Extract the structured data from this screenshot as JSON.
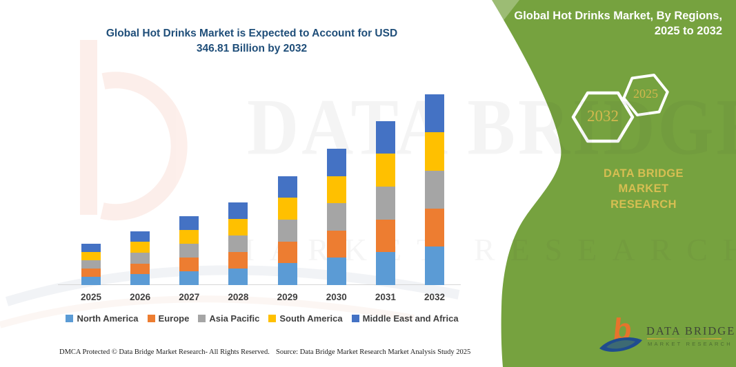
{
  "title": {
    "line1": "Global Hot Drinks Market is Expected to Account for USD",
    "line2": "346.81 Billion by 2032"
  },
  "panel": {
    "header_line1": "Global Hot Drinks Market, By Regions,",
    "header_line2": "2025 to 2032",
    "hexagon_large_label": "2032",
    "hexagon_small_label": "2025",
    "brand_line1": "DATA BRIDGE MARKET",
    "brand_line2": "RESEARCH",
    "background_color": "#76A23F",
    "gold_color": "#D6BE52"
  },
  "watermark": {
    "text_top": "DATA BRIDGE",
    "text_bottom": "MARKET RESEARCH"
  },
  "logo": {
    "name": "DATA BRIDGE",
    "subtitle": "MARKET RESEARCH",
    "b_glyph": "b"
  },
  "footer": {
    "left": "DMCA Protected © Data Bridge Market Research-  All Rights Reserved.",
    "right": "Source: Data Bridge Market Research  Market Analysis Study 2025"
  },
  "chart_data": {
    "type": "bar",
    "subtype": "stacked-column",
    "title": "Global Hot Drinks Market is Expected to Account for USD 346.81 Billion by 2032",
    "unit": "USD Billion",
    "categories": [
      "2025",
      "2026",
      "2027",
      "2028",
      "2029",
      "2030",
      "2031",
      "2032"
    ],
    "series": [
      {
        "name": "North America",
        "color": "#5B9BD5",
        "values": [
          14.9,
          19.6,
          25.1,
          29.9,
          39.6,
          49.4,
          59.6,
          69.36
        ]
      },
      {
        "name": "Europe",
        "color": "#ED7D31",
        "values": [
          14.9,
          19.6,
          25.1,
          29.9,
          39.6,
          49.4,
          59.6,
          69.36
        ]
      },
      {
        "name": "Asia Pacific",
        "color": "#A5A5A5",
        "values": [
          14.9,
          19.6,
          25.1,
          29.9,
          39.6,
          49.4,
          59.6,
          69.36
        ]
      },
      {
        "name": "South America",
        "color": "#FFC000",
        "values": [
          14.9,
          19.6,
          25.1,
          29.9,
          39.6,
          49.4,
          59.6,
          69.36
        ]
      },
      {
        "name": "Middle East and Africa",
        "color": "#4472C4",
        "values": [
          14.9,
          19.6,
          25.1,
          29.9,
          39.6,
          49.4,
          59.6,
          69.36
        ]
      }
    ],
    "totals": [
      74.5,
      98.0,
      125.5,
      149.5,
      198.0,
      247.0,
      298.0,
      346.81
    ],
    "value_labels_visible": false,
    "y_axis_visible": false,
    "gridlines": false,
    "legend_position": "bottom"
  }
}
